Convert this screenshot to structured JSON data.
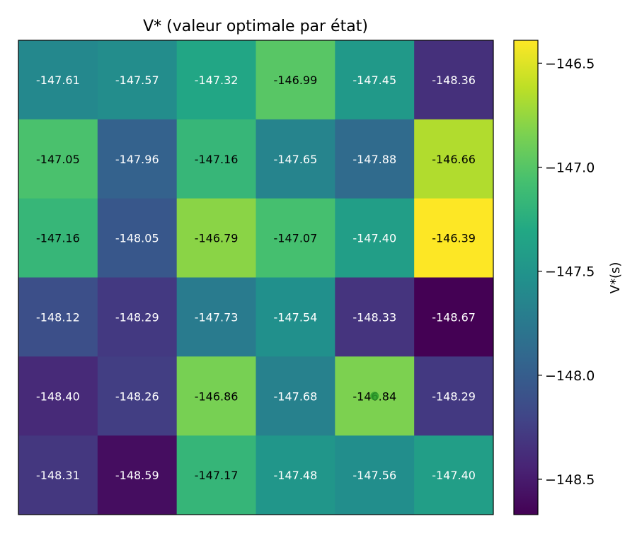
{
  "chart_data": {
    "type": "heatmap",
    "title": "V* (valeur optimale par état)",
    "colorbar_label": "V*(s)",
    "colorbar_ticks": [
      -146.5,
      -147.0,
      -147.5,
      -148.0,
      -148.5
    ],
    "colorbar_tick_labels": [
      "−146.5",
      "−147.0",
      "−147.5",
      "−148.0",
      "−148.5"
    ],
    "vmin": -148.67,
    "vmax": -146.39,
    "colormap": "viridis",
    "values": [
      [
        -147.61,
        -147.57,
        -147.32,
        -146.99,
        -147.45,
        -148.36
      ],
      [
        -147.05,
        -147.96,
        -147.16,
        -147.65,
        -147.88,
        -146.66
      ],
      [
        -147.16,
        -148.05,
        -146.79,
        -147.07,
        -147.4,
        -146.39
      ],
      [
        -148.12,
        -148.29,
        -147.73,
        -147.54,
        -148.33,
        -148.67
      ],
      [
        -148.4,
        -148.26,
        -146.86,
        -147.68,
        -146.84,
        -148.29
      ],
      [
        -148.31,
        -148.59,
        -147.17,
        -147.48,
        -147.56,
        -147.4
      ]
    ],
    "cell_labels": [
      [
        "-147.61",
        "-147.57",
        "-147.32",
        "-146.99",
        "-147.45",
        "-148.36"
      ],
      [
        "-147.05",
        "-147.96",
        "-147.16",
        "-147.65",
        "-147.88",
        "-146.66"
      ],
      [
        "-147.16",
        "-148.05",
        "-146.79",
        "-147.07",
        "-147.40",
        "-146.39"
      ],
      [
        "-148.12",
        "-148.29",
        "-147.73",
        "-147.54",
        "-148.33",
        "-148.67"
      ],
      [
        "-148.40",
        "-148.26",
        "-146.86",
        "-147.68",
        "-146.84",
        "-148.29"
      ],
      [
        "-148.31",
        "-148.59",
        "-147.17",
        "-147.48",
        "-147.56",
        "-147.40"
      ]
    ],
    "marker": {
      "row": 4,
      "col": 4,
      "symbol": "circle",
      "color": "#2ca02c"
    },
    "grid": false
  }
}
